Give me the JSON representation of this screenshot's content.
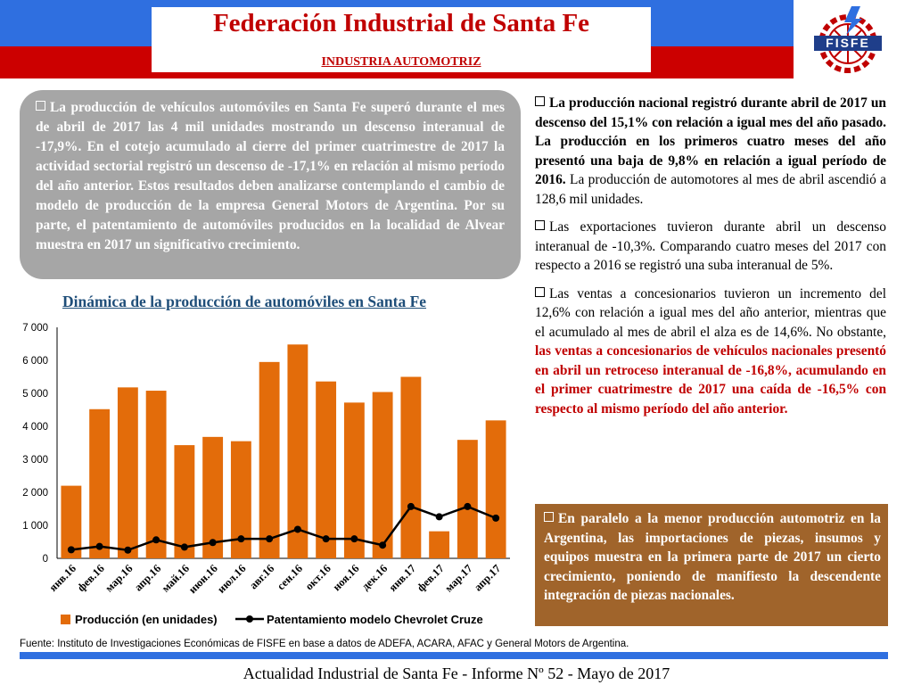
{
  "header": {
    "title": "Federación Industrial de Santa Fe",
    "subtitle": "INDUSTRIA AUTOMOTRIZ",
    "logo_text": "FISFE"
  },
  "colors": {
    "blue": "#2f6fe0",
    "red": "#cc0000",
    "bar": "#e36c0a",
    "brown": "#a0642b",
    "gray": "#a6a6a6"
  },
  "left_box": {
    "text": "La producción de vehículos automóviles en Santa Fe superó durante el mes de abril de 2017 las 4 mil unidades mostrando un descenso interanual de -17,9%. En el cotejo acumulado al cierre del primer cuatrimestre de 2017 la actividad sectorial registró un descenso de -17,1% en relación al mismo período del año anterior. Estos resultados deben analizarse contemplando el cambio de modelo de producción de la empresa General Motors de Argentina. Por su parte, el patentamiento de automóviles producidos en la localidad de Alvear muestra en 2017 un significativo crecimiento."
  },
  "right_col": {
    "p1_bold": "La producción nacional registró durante abril de 2017 un descenso del 15,1% con relación a igual mes del año pasado. La producción en los primeros cuatro meses del año presentó una baja de 9,8% en relación a igual período de 2016.",
    "p1_normal": "La producción de automotores al mes de abril ascendió a 128,6 mil unidades.",
    "p2": "Las exportaciones tuvieron durante abril un descenso interanual de -10,3%. Comparando cuatro meses del 2017 con respecto a 2016 se registró una suba interanual de 5%.",
    "p3_normal": "Las ventas a concesionarios tuvieron un incremento del 12,6% con relación a igual mes del año anterior, mientras que el acumulado al mes de abril el alza es de 14,6%. No obstante,",
    "p3_red": "las ventas a concesionarios de vehículos nacionales presentó en abril un retroceso interanual de -16,8%, acumulando en el primer cuatrimestre de 2017 una caída de -16,5% con respecto al mismo período del año anterior."
  },
  "brown_box": {
    "text": "En paralelo a la menor producción automotriz en la Argentina, las importaciones de piezas, insumos y equipos muestra en la primera parte de 2017 un cierto crecimiento, poniendo de manifiesto la descendente integración de piezas nacionales."
  },
  "chart_data": {
    "type": "bar",
    "title": "Dinámica de la producción de automóviles en Santa Fe",
    "categories": [
      "янв.16",
      "фев.16",
      "мар.16",
      "апр.16",
      "май.16",
      "июн.16",
      "июл.16",
      "авг.16",
      "сен.16",
      "окт.16",
      "ноя.16",
      "дек.16",
      "янв.17",
      "фев.17",
      "мар.17",
      "апр.17"
    ],
    "series": [
      {
        "name": "Producción (en unidades)",
        "type": "bar",
        "color": "#e36c0a",
        "values": [
          2200,
          4520,
          5180,
          5080,
          3430,
          3680,
          3550,
          5950,
          6480,
          5360,
          4720,
          5040,
          5500,
          820,
          3590,
          4180
        ]
      },
      {
        "name": "Patentamiento modelo Chevrolet Cruze",
        "type": "line",
        "color": "#000000",
        "values": [
          260,
          360,
          250,
          560,
          340,
          480,
          590,
          590,
          880,
          590,
          590,
          400,
          1570,
          1260,
          1570,
          1220
        ]
      }
    ],
    "yticks": [
      "0",
      "1 000",
      "2 000",
      "3 000",
      "4 000",
      "5 000",
      "6 000",
      "7 000"
    ],
    "ylim": [
      0,
      7000
    ],
    "legend": "bottom"
  },
  "source": "Fuente: Instituto de Investigaciones Económicas de FISFE en base a datos de ADEFA, ACARA, AFAC y General Motors de Argentina.",
  "footer": "Actualidad Industrial de Santa Fe - Informe Nº 52 - Mayo de 2017"
}
